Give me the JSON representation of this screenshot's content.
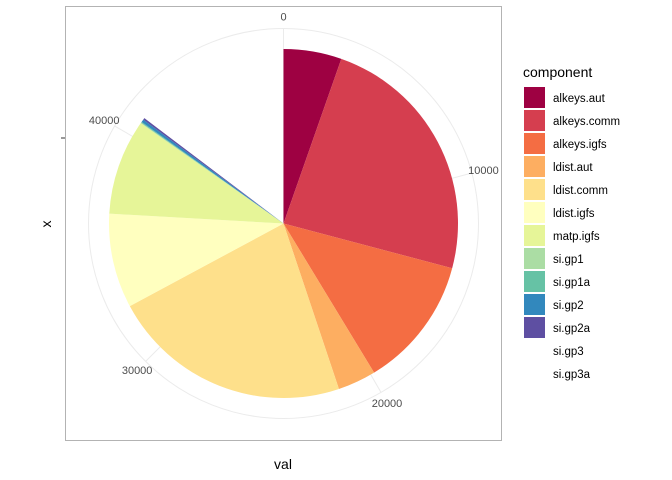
{
  "chart_data": {
    "type": "pie",
    "coord": "polar",
    "xlabel": "val",
    "ylabel": "x",
    "legend_title": "component",
    "legend_position": "right",
    "theta_range": [
      0,
      48000
    ],
    "theta_ticks": [
      0,
      10000,
      20000,
      30000,
      40000
    ],
    "theta_tick_labels": [
      "0",
      "10000",
      "20000",
      "30000",
      "40000"
    ],
    "grid": true,
    "categories": [
      "alkeys.aut",
      "alkeys.comm",
      "alkeys.igfs",
      "ldist.aut",
      "ldist.comm",
      "ldist.igfs",
      "matp.igfs",
      "si.gp1",
      "si.gp1a",
      "si.gp2",
      "si.gp2a",
      "si.gp3",
      "si.gp3a"
    ],
    "values": [
      2580,
      11400,
      5850,
      1700,
      10700,
      4200,
      4250,
      30,
      40,
      120,
      80,
      0,
      0
    ],
    "colors": [
      "#9E0142",
      "#D53E4F",
      "#F46D43",
      "#FDAE61",
      "#FEE08B",
      "#FFFFBF",
      "#E6F598",
      "#ABDDA4",
      "#66C2A5",
      "#3288BD",
      "#5E4FA2",
      "#FFFFFF",
      "#FFFFFF"
    ]
  }
}
